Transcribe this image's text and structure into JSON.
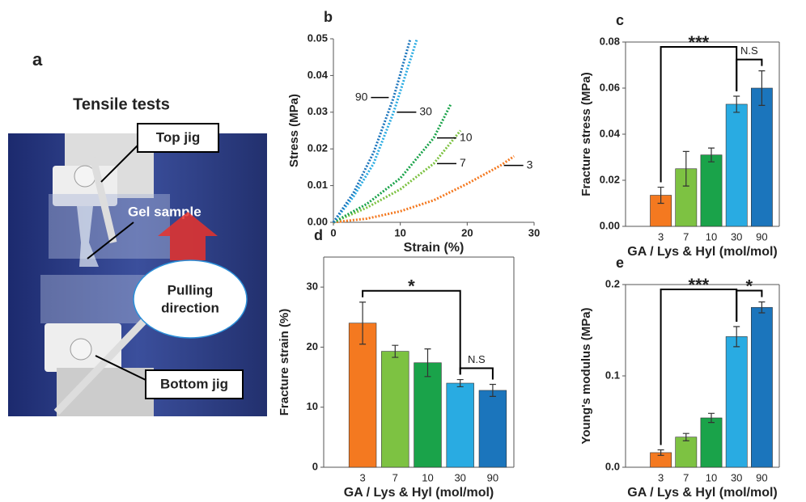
{
  "photo": {
    "panel_label": "a",
    "title": "Tensile tests",
    "top_jig": "Top jig",
    "gel_sample": "Gel sample",
    "pulling_direction": [
      "Pulling",
      "direction"
    ],
    "bottom_jig": "Bottom jig"
  },
  "chart_data": [
    {
      "type": "line",
      "panel_label": "b",
      "x_label": "Strain (%)",
      "y_label": "Stress (MPa)",
      "xlim": [
        0,
        30
      ],
      "xticks": [
        0,
        10,
        20,
        30
      ],
      "ylim": [
        0,
        0.05
      ],
      "yticks": [
        {
          "value": 0,
          "label": "0.00"
        },
        0.01,
        0.02,
        0.03,
        0.04,
        0.05
      ],
      "series": [
        {
          "name": "3",
          "color": "#f47920",
          "x": [
            0,
            5,
            10,
            15,
            20,
            25,
            27
          ],
          "values": [
            0,
            0.001,
            0.003,
            0.006,
            0.0105,
            0.0155,
            0.018
          ]
        },
        {
          "name": "7",
          "color": "#7dc242",
          "x": [
            0,
            5,
            10,
            15,
            19
          ],
          "values": [
            0,
            0.004,
            0.009,
            0.016,
            0.025
          ]
        },
        {
          "name": "10",
          "color": "#1aa34a",
          "x": [
            0,
            5,
            10,
            15,
            17.5
          ],
          "values": [
            0,
            0.005,
            0.012,
            0.023,
            0.032
          ]
        },
        {
          "name": "30",
          "color": "#29abe2",
          "x": [
            0,
            3,
            6,
            9,
            12.5
          ],
          "values": [
            0,
            0.007,
            0.016,
            0.03,
            0.05
          ]
        },
        {
          "name": "90",
          "color": "#1b75bc",
          "x": [
            0,
            3,
            6,
            9,
            11.5
          ],
          "values": [
            0,
            0.008,
            0.019,
            0.034,
            0.05
          ]
        }
      ]
    },
    {
      "type": "bar",
      "panel_label": "c",
      "x_label": "GA / Lys & Hyl (mol/mol)",
      "y_label": "Fracture stress (MPa)",
      "categories": [
        "3",
        "7",
        "10",
        "30",
        "90"
      ],
      "values": [
        0.0135,
        0.025,
        0.031,
        0.053,
        0.06
      ],
      "errors": [
        0.0035,
        0.0075,
        0.003,
        0.0035,
        0.0075
      ],
      "colors": [
        "#f47920",
        "#7dc242",
        "#1aa34a",
        "#29abe2",
        "#1b75bc"
      ],
      "ylim": [
        0,
        0.08
      ],
      "yticks": [
        {
          "value": 0,
          "label": "0.00"
        },
        0.02,
        0.04,
        0.06,
        0.08
      ],
      "annotations": [
        {
          "text": "***",
          "between": [
            "3",
            "30"
          ]
        },
        {
          "text": "N.S",
          "between": [
            "30",
            "90"
          ]
        }
      ]
    },
    {
      "type": "bar",
      "panel_label": "d",
      "x_label": "GA / Lys & Hyl (mol/mol)",
      "y_label": "Fracture strain (%)",
      "categories": [
        "3",
        "7",
        "10",
        "30",
        "90"
      ],
      "values": [
        24,
        19.3,
        17.4,
        14,
        12.8
      ],
      "errors": [
        3.5,
        1,
        2.3,
        0.6,
        1
      ],
      "colors": [
        "#f47920",
        "#7dc242",
        "#1aa34a",
        "#29abe2",
        "#1b75bc"
      ],
      "ylim": [
        0,
        35
      ],
      "yticks": [
        0,
        10,
        20,
        30
      ],
      "annotations": [
        {
          "text": "*",
          "between": [
            "3",
            "30"
          ]
        },
        {
          "text": "N.S",
          "between": [
            "30",
            "90"
          ]
        }
      ]
    },
    {
      "type": "bar",
      "panel_label": "e",
      "x_label": "GA / Lys & Hyl (mol/mol)",
      "y_label": "Young's modulus (MPa)",
      "categories": [
        "3",
        "7",
        "10",
        "30",
        "90"
      ],
      "values": [
        0.016,
        0.033,
        0.054,
        0.143,
        0.175
      ],
      "errors": [
        0.003,
        0.004,
        0.005,
        0.011,
        0.006
      ],
      "colors": [
        "#f47920",
        "#7dc242",
        "#1aa34a",
        "#29abe2",
        "#1b75bc"
      ],
      "ylim": [
        0,
        0.2
      ],
      "yticks": [
        {
          "value": 0,
          "label": "0.0"
        },
        0.1,
        0.2
      ],
      "annotations": [
        {
          "text": "***",
          "between": [
            "3",
            "30"
          ]
        },
        {
          "text": "*",
          "between": [
            "30",
            "90"
          ]
        }
      ]
    }
  ]
}
